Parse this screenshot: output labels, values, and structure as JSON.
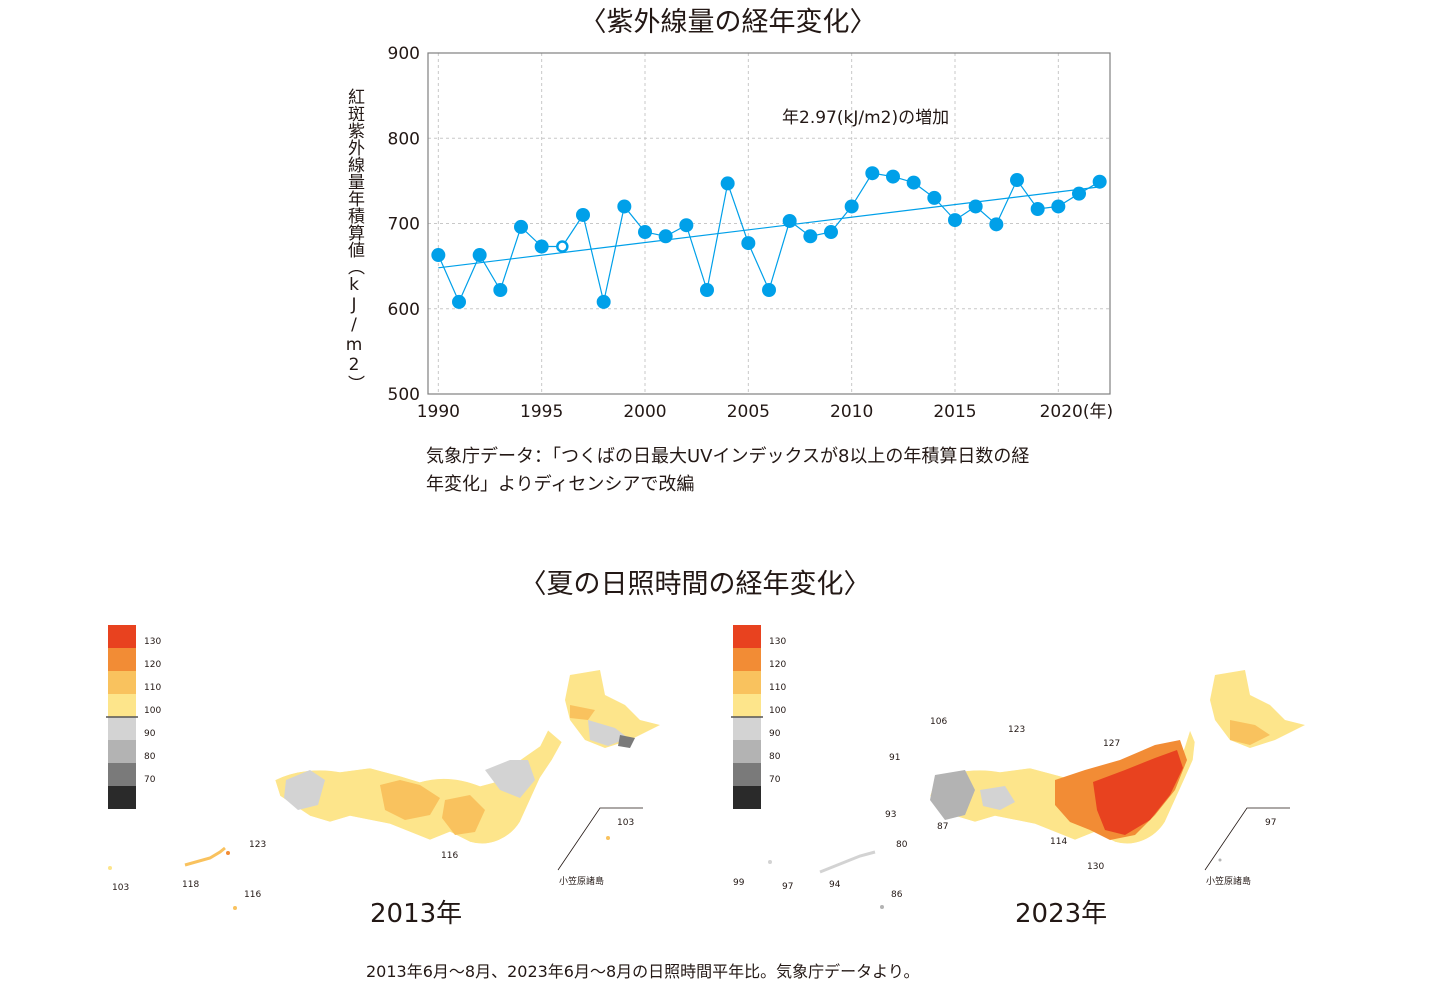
{
  "uv_section": {
    "title": "〈紫外線量の経年変化〉",
    "note_line1": "気象庁データ：「つくばの日最大UVインデックスが8以上の年積算日数の経",
    "note_line2": "年変化」よりディセンシアで改編"
  },
  "chart_data": {
    "type": "line",
    "title": "",
    "ylabel": "紅斑紫外線量年積算値（kJ/m2）",
    "xlabel": "",
    "x_tick_labels": [
      "1990",
      "1995",
      "2000",
      "2005",
      "2010",
      "2015",
      "2020(年)"
    ],
    "y_tick_labels": [
      "500",
      "600",
      "700",
      "800",
      "900"
    ],
    "x_ticks": [
      1990,
      1995,
      2000,
      2005,
      2010,
      2015,
      2020
    ],
    "y_ticks": [
      500,
      600,
      700,
      800,
      900
    ],
    "xlim": [
      1989.5,
      2022.5
    ],
    "ylim": [
      500,
      900
    ],
    "grid": true,
    "x": [
      1990,
      1991,
      1992,
      1993,
      1994,
      1995,
      1996,
      1997,
      1998,
      1999,
      2000,
      2001,
      2002,
      2003,
      2004,
      2005,
      2006,
      2007,
      2008,
      2009,
      2010,
      2011,
      2012,
      2013,
      2014,
      2015,
      2016,
      2017,
      2018,
      2019,
      2020,
      2021,
      2022
    ],
    "series": [
      {
        "values": [
          663,
          608,
          663,
          622,
          696,
          673,
          673,
          710,
          608,
          720,
          690,
          685,
          698,
          622,
          747,
          677,
          622,
          703,
          685,
          690,
          720,
          759,
          755,
          748,
          730,
          704,
          720,
          699,
          751,
          717,
          720,
          735,
          749
        ]
      }
    ],
    "hollow_point_x": 1996,
    "trend": {
      "label": "年2.97(kJ/m2)の増加",
      "slope": 2.97,
      "start": [
        1990,
        648
      ],
      "end": [
        2022,
        743
      ]
    },
    "colors": {
      "series": "#00a0e9",
      "grid": "#c8c8c8"
    }
  },
  "sunshine_section": {
    "title": "〈夏の日照時間の経年変化〉",
    "legend_labels": [
      "130",
      "120",
      "110",
      "100",
      "90",
      "80",
      "70"
    ],
    "legend_colors": [
      "#e8421f",
      "#f28c35",
      "#f9c25e",
      "#fde58b",
      "#d3d3d3",
      "#b3b3b3",
      "#7a7a7a",
      "#2a2a2a"
    ],
    "map_2013": {
      "year_label": "2013年",
      "values": [
        "123",
        "103",
        "118",
        "116",
        "116",
        "103"
      ],
      "inset_label": "小笠原諸島"
    },
    "map_2023": {
      "year_label": "2023年",
      "values": [
        "106",
        "123",
        "127",
        "91",
        "93",
        "87",
        "80",
        "114",
        "130",
        "99",
        "97",
        "94",
        "86",
        "97"
      ],
      "inset_label": "小笠原諸島"
    },
    "caption": "2013年6月〜8月、2023年6月〜8月の日照時間平年比。気象庁データより。"
  }
}
